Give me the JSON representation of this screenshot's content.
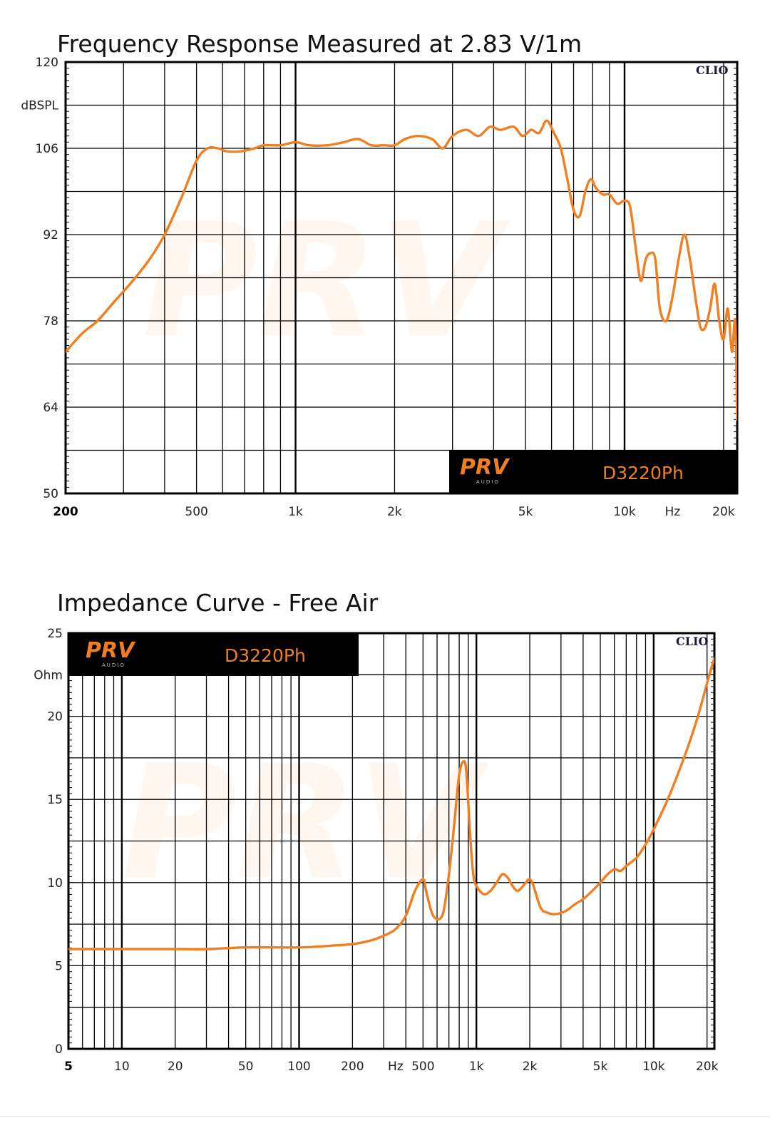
{
  "chart_data": [
    {
      "type": "line",
      "title": "Frequency Response Measured at 2.83 V/1m",
      "ylabel": "dBSPL",
      "xlabel": "Hz",
      "x_scale": "log",
      "xlim": [
        200,
        22000
      ],
      "ylim": [
        50,
        120
      ],
      "grid": true,
      "x_ticks": [
        {
          "value": 200,
          "label": "200",
          "bold": true
        },
        {
          "value": 500,
          "label": "500"
        },
        {
          "value": 1000,
          "label": "1k"
        },
        {
          "value": 2000,
          "label": "2k"
        },
        {
          "value": 5000,
          "label": "5k"
        },
        {
          "value": 10000,
          "label": "10k"
        },
        {
          "value": 14000,
          "label": "Hz"
        },
        {
          "value": 20000,
          "label": "20k"
        }
      ],
      "y_ticks": [
        {
          "value": 120,
          "label": "120"
        },
        {
          "value": 113,
          "label": "dBSPL"
        },
        {
          "value": 106,
          "label": "106"
        },
        {
          "value": 92,
          "label": "92"
        },
        {
          "value": 78,
          "label": "78"
        },
        {
          "value": 64,
          "label": "64"
        },
        {
          "value": 50,
          "label": "50"
        }
      ],
      "corner_label": "CLIO",
      "brand": {
        "logo": "PRV",
        "sub": "AUDIO",
        "model": "D3220Ph",
        "position": "bottom-right"
      },
      "series": [
        {
          "color": "#f07f22",
          "x": [
            200,
            225,
            250,
            280,
            320,
            360,
            400,
            450,
            500,
            540,
            580,
            620,
            680,
            750,
            800,
            900,
            1000,
            1100,
            1250,
            1400,
            1550,
            1700,
            1850,
            2000,
            2150,
            2350,
            2600,
            2800,
            3000,
            3300,
            3600,
            3900,
            4200,
            4600,
            4900,
            5200,
            5500,
            5800,
            6100,
            6400,
            6700,
            7000,
            7300,
            7600,
            7900,
            8200,
            8600,
            9000,
            9500,
            10000,
            10400,
            10800,
            11200,
            11600,
            12000,
            12400,
            12800,
            13400,
            14000,
            14600,
            15200,
            15800,
            16400,
            17000,
            17600,
            18200,
            18800,
            19400,
            20000,
            20600,
            21200,
            21700,
            22000
          ],
          "y": [
            73,
            76,
            78,
            81,
            84.5,
            88,
            92,
            98,
            104,
            106,
            106,
            105.5,
            105.5,
            106,
            106.5,
            106.5,
            107,
            106.5,
            106.5,
            107,
            107.5,
            106.5,
            106.5,
            106.5,
            107.5,
            108,
            107.5,
            106,
            108,
            109,
            108,
            109.5,
            109,
            109.5,
            108,
            109,
            108.5,
            110.5,
            108.5,
            106,
            101,
            96,
            95,
            99,
            101,
            99.5,
            98.5,
            98.5,
            97,
            97.5,
            96.5,
            90,
            84.5,
            88,
            89,
            88,
            80,
            78,
            82,
            88,
            92,
            88,
            82,
            77,
            77,
            80,
            84,
            78,
            75,
            80,
            73,
            78,
            62
          ]
        }
      ]
    },
    {
      "type": "line",
      "title": "Impedance Curve - Free Air",
      "ylabel": "Ohm",
      "xlabel": "Hz",
      "x_scale": "log",
      "xlim": [
        5,
        22000
      ],
      "ylim": [
        0,
        25
      ],
      "grid": true,
      "x_ticks": [
        {
          "value": 5,
          "label": "5",
          "bold": true
        },
        {
          "value": 10,
          "label": "10"
        },
        {
          "value": 20,
          "label": "20"
        },
        {
          "value": 50,
          "label": "50"
        },
        {
          "value": 100,
          "label": "100"
        },
        {
          "value": 200,
          "label": "200"
        },
        {
          "value": 350,
          "label": "Hz"
        },
        {
          "value": 500,
          "label": "500"
        },
        {
          "value": 1000,
          "label": "1k"
        },
        {
          "value": 2000,
          "label": "2k"
        },
        {
          "value": 5000,
          "label": "5k"
        },
        {
          "value": 10000,
          "label": "10k"
        },
        {
          "value": 20000,
          "label": "20k"
        }
      ],
      "y_ticks": [
        {
          "value": 25,
          "label": "25"
        },
        {
          "value": 22.5,
          "label": "Ohm"
        },
        {
          "value": 20,
          "label": "20"
        },
        {
          "value": 15,
          "label": "15"
        },
        {
          "value": 10,
          "label": "10"
        },
        {
          "value": 5,
          "label": "5"
        },
        {
          "value": 0,
          "label": "0"
        }
      ],
      "corner_label": "CLIO",
      "brand": {
        "logo": "PRV",
        "sub": "AUDIO",
        "model": "D3220Ph",
        "position": "top-left"
      },
      "series": [
        {
          "color": "#f07f22",
          "x": [
            5,
            10,
            20,
            30,
            50,
            100,
            150,
            200,
            250,
            300,
            350,
            400,
            450,
            500,
            520,
            560,
            600,
            650,
            700,
            750,
            800,
            850,
            880,
            920,
            960,
            1000,
            1100,
            1200,
            1300,
            1400,
            1500,
            1600,
            1700,
            1800,
            1900,
            2000,
            2100,
            2300,
            2500,
            2800,
            3200,
            3600,
            4000,
            4500,
            5000,
            5500,
            6000,
            6500,
            7000,
            8000,
            9000,
            10000,
            12000,
            14000,
            16000,
            18000,
            20000,
            22000
          ],
          "y": [
            6,
            6,
            6,
            6,
            6.1,
            6.1,
            6.2,
            6.3,
            6.5,
            6.8,
            7.2,
            8,
            9.5,
            10.2,
            9.5,
            8.2,
            7.8,
            8.2,
            10.5,
            13.5,
            16.5,
            17.3,
            16.5,
            13,
            10.5,
            9.8,
            9.3,
            9.5,
            10,
            10.5,
            10.3,
            9.8,
            9.5,
            9.7,
            10,
            10.2,
            9.8,
            8.5,
            8.2,
            8.1,
            8.3,
            8.7,
            9,
            9.5,
            10,
            10.5,
            10.8,
            10.7,
            11,
            11.5,
            12.3,
            13.2,
            15,
            16.8,
            18.5,
            20.2,
            22,
            23.5
          ]
        }
      ]
    }
  ]
}
